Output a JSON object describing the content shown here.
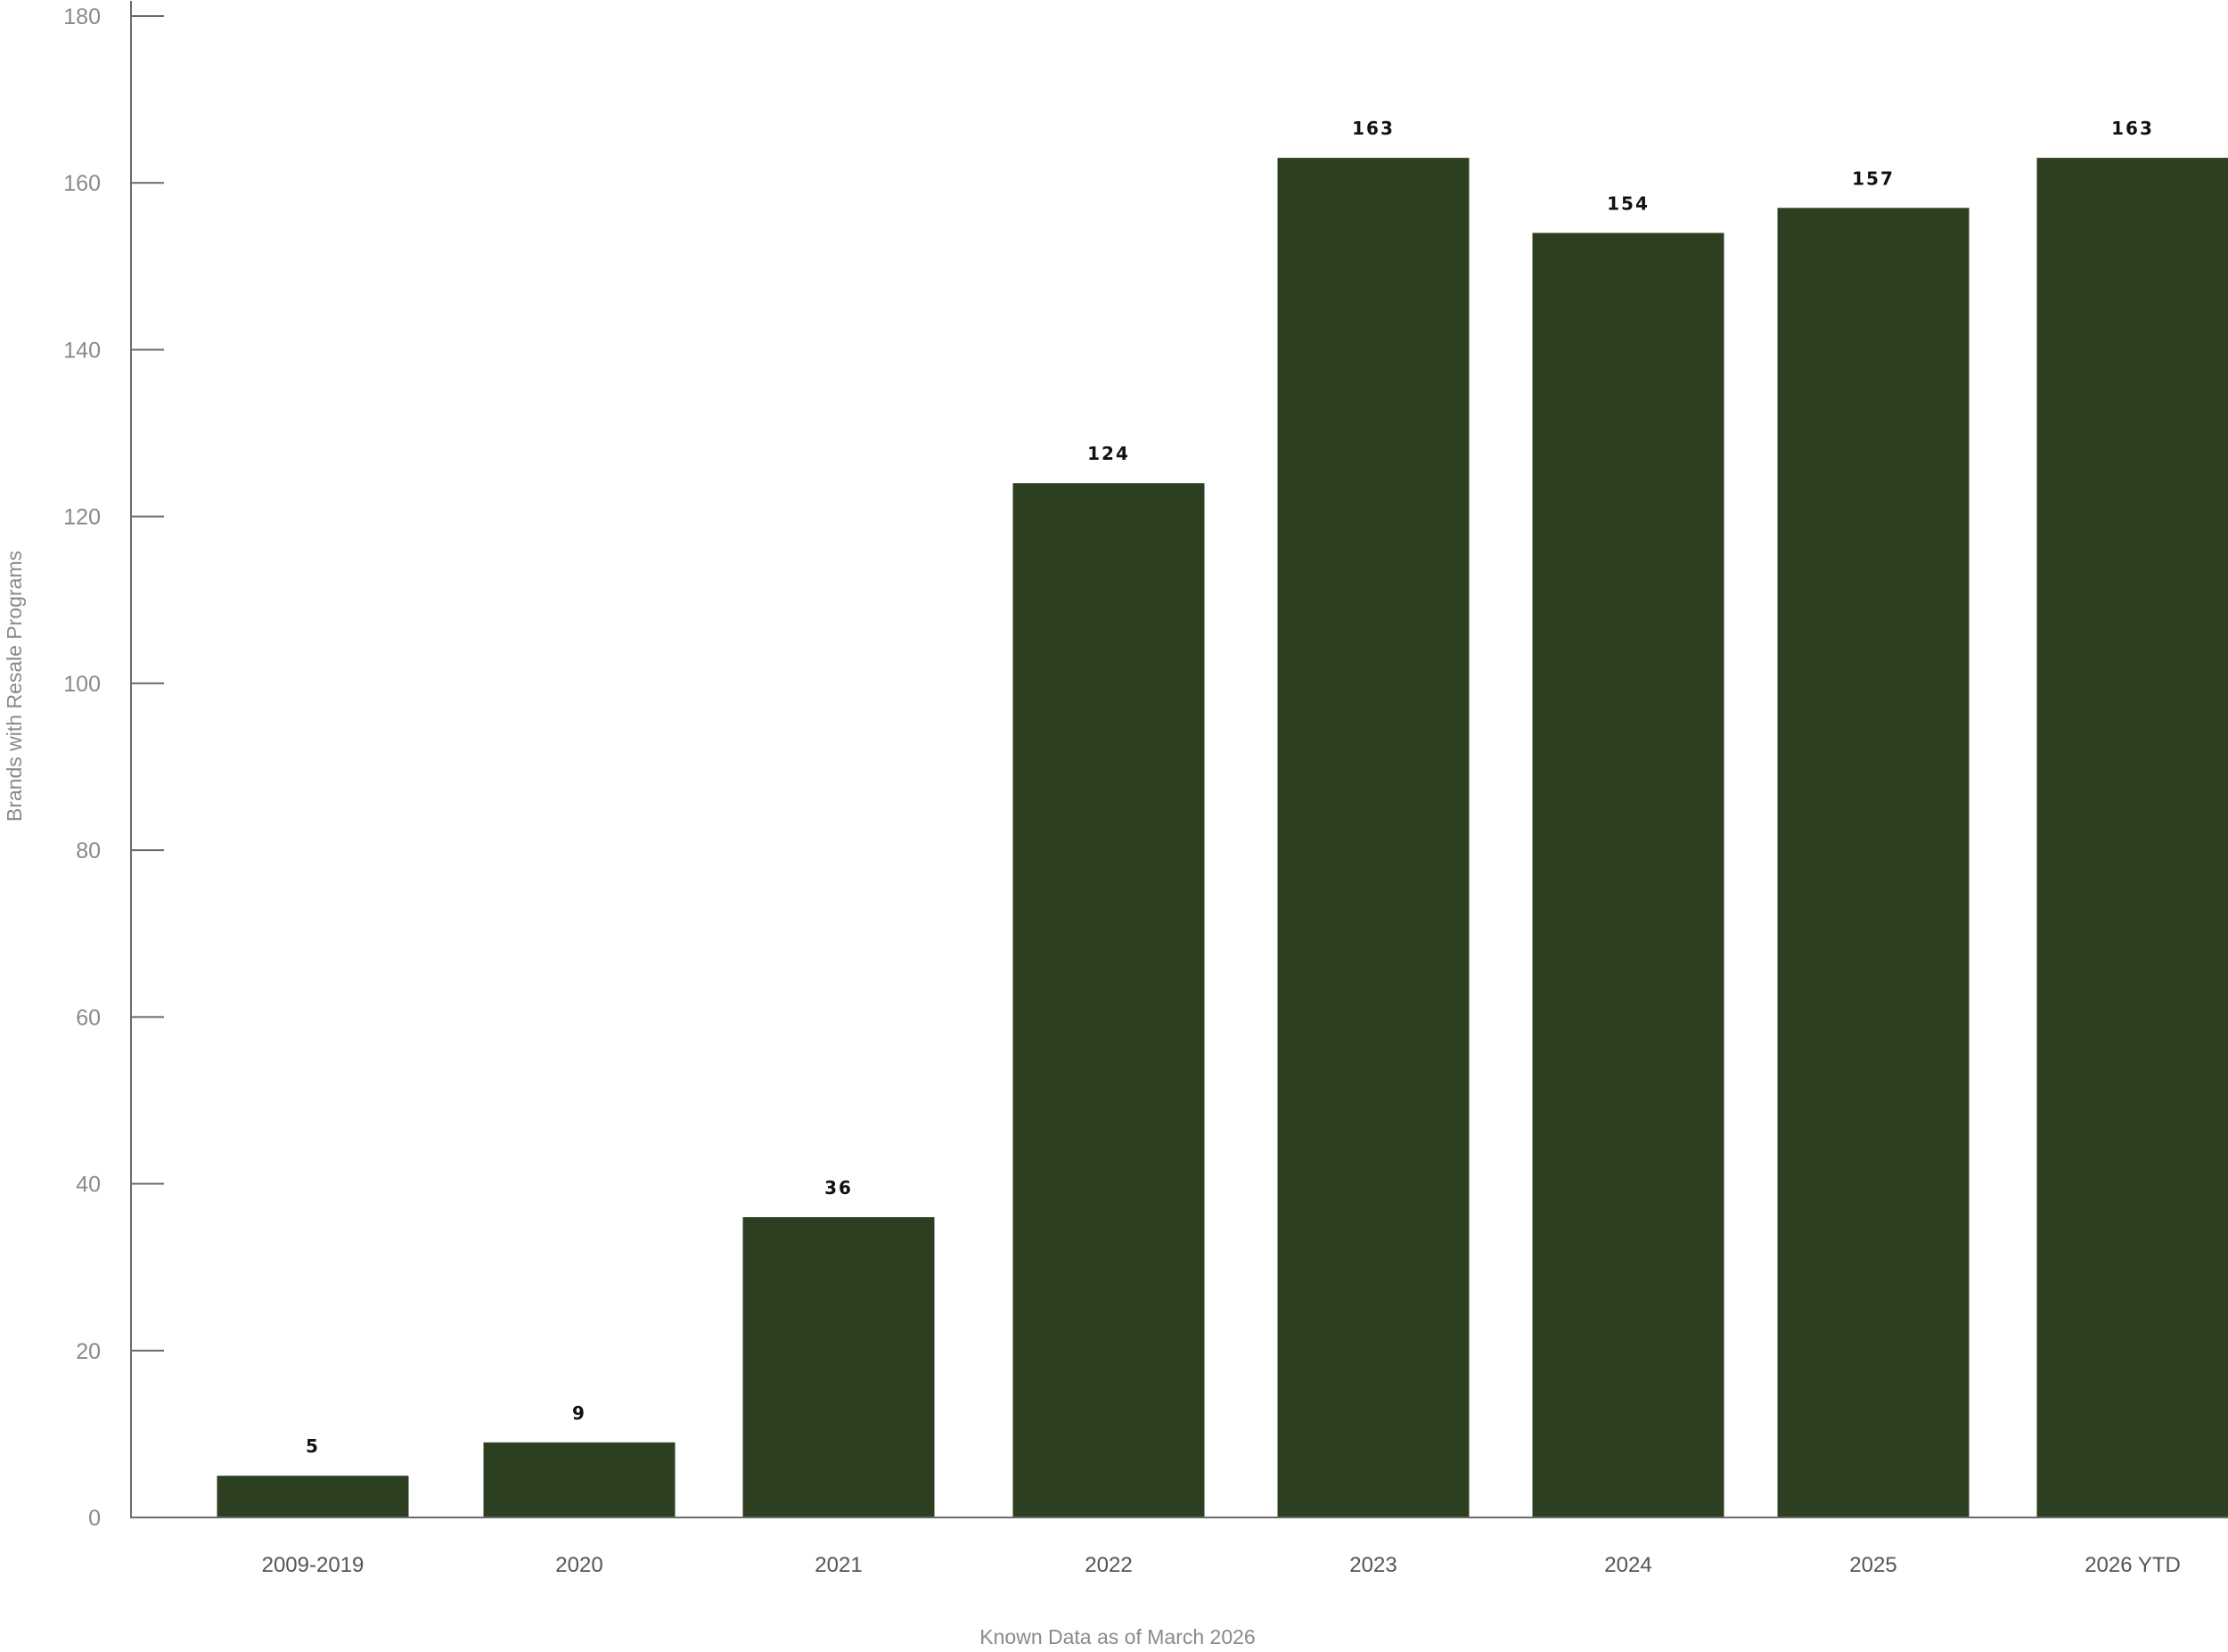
{
  "chart_data": {
    "type": "bar",
    "categories": [
      "2009-2019",
      "2020",
      "2021",
      "2022",
      "2023",
      "2024",
      "2025",
      "2026 YTD"
    ],
    "values": [
      5,
      9,
      36,
      124,
      163,
      154,
      157,
      163
    ],
    "data_labels": [
      "5",
      "9",
      "36",
      "124",
      "163",
      "154",
      "157",
      "163"
    ],
    "title": "",
    "xlabel": "Known Data as of March 2026",
    "ylabel": "Brands with Resale Programs",
    "ylim": [
      0,
      180
    ],
    "yticks": [
      0,
      20,
      40,
      60,
      80,
      100,
      120,
      140,
      160,
      180
    ],
    "grid": false,
    "legend": "none",
    "colors": {
      "bar": "#2c4021",
      "axis": "#6b6b6b",
      "tick_label": "#8a8a8a",
      "category_label": "#555555",
      "data_label": "#111111"
    }
  }
}
